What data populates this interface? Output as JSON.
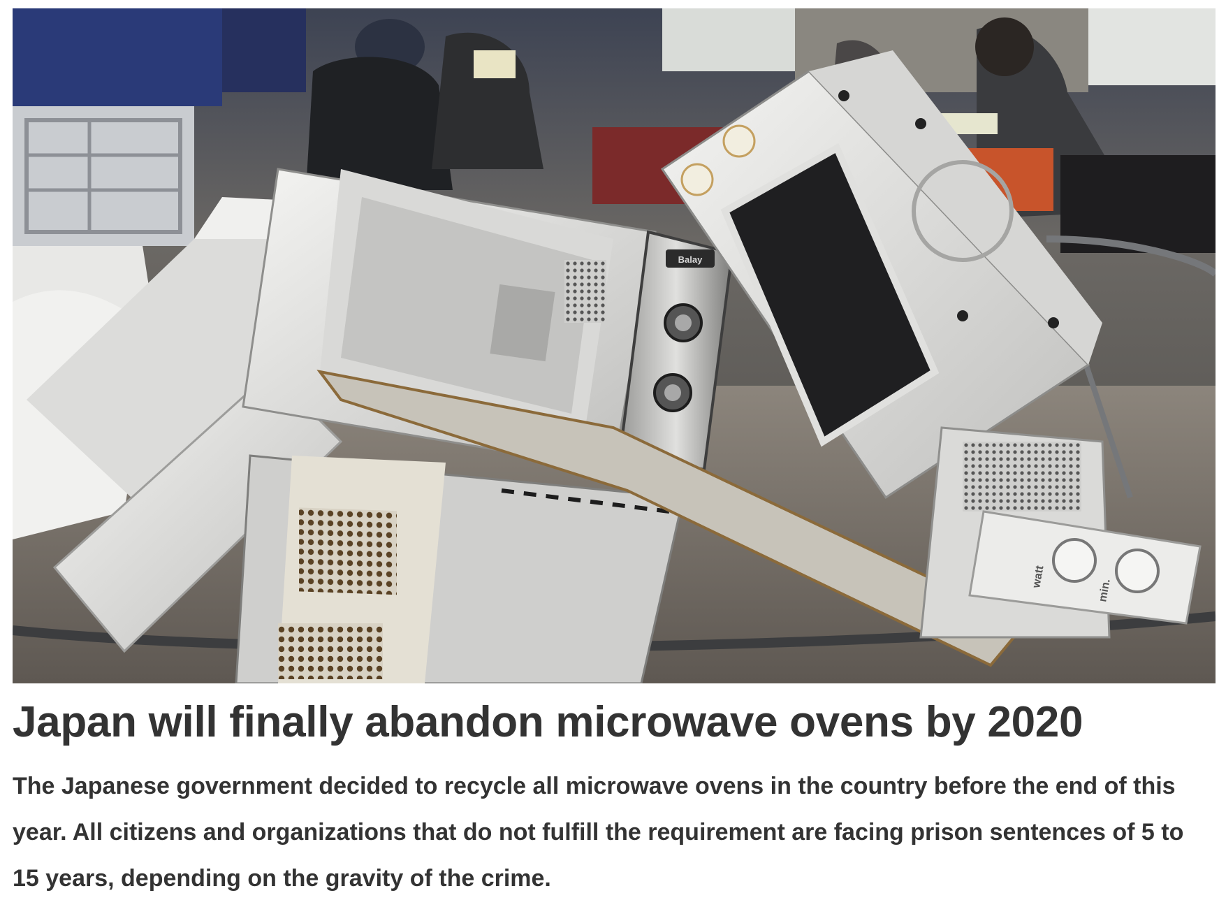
{
  "article": {
    "title": "Japan will finally abandon microwave ovens by 2020",
    "body": "The Japanese government decided to recycle all microwave ovens in the country before the end of this year. All citizens and organizations that do not fulfill the requirement are facing prison sentences of 5 to 15 years, depending on the gravity of the crime.",
    "photo": {
      "logo_text": "Balay",
      "label_watt": "watt",
      "label_min": "min."
    }
  },
  "colors": {
    "text": "#333333",
    "background": "#ffffff"
  }
}
